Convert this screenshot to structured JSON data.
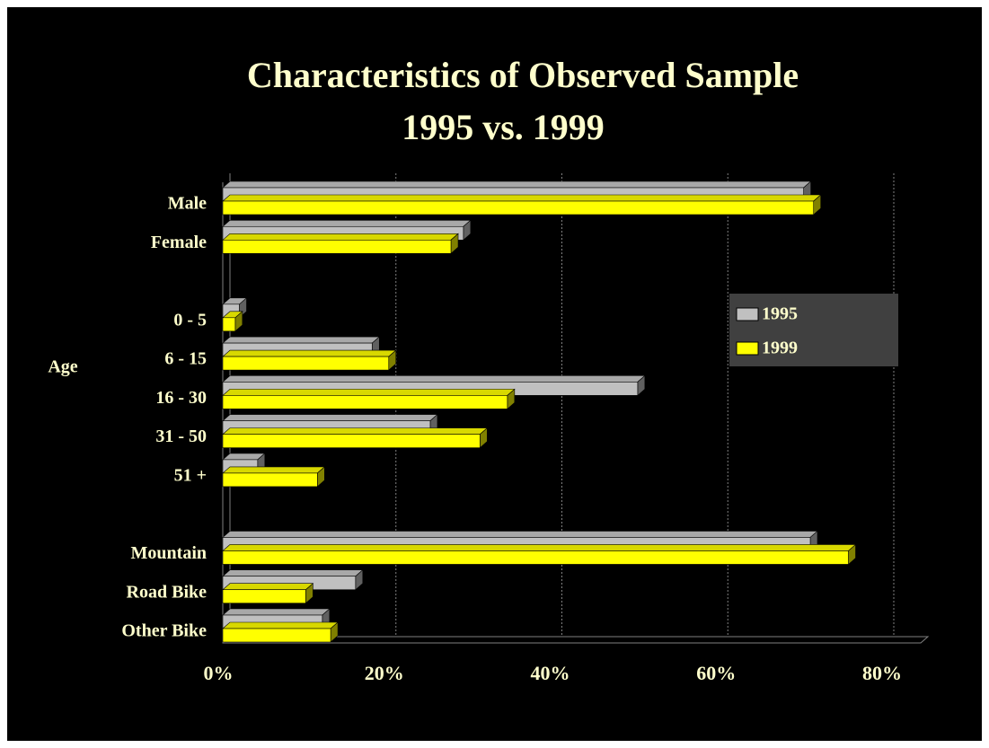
{
  "chart_data": {
    "type": "bar3d_horizontal",
    "title": "Characteristics of Observed Sample",
    "subtitle": "1995 vs. 1999",
    "annotations": [
      "Age"
    ],
    "categories": [
      "Male",
      "Female",
      null,
      "0 - 5",
      "6 - 15",
      "16 - 30",
      "31 - 50",
      "51 +",
      null,
      "Mountain",
      "Road Bike",
      "Other Bike"
    ],
    "series": [
      {
        "name": "1995",
        "color": "#c0c0c0",
        "values": [
          70,
          29,
          null,
          2,
          18,
          50,
          25,
          4.2,
          null,
          70.8,
          16,
          12
        ]
      },
      {
        "name": "1999",
        "color": "#ffff00",
        "values": [
          71.2,
          27.5,
          null,
          1.5,
          20,
          34.3,
          31,
          11.4,
          null,
          75.4,
          10,
          13
        ]
      }
    ],
    "xlim": [
      0,
      80
    ],
    "xticks": [
      {
        "value": 0,
        "label": "0%"
      },
      {
        "value": 20,
        "label": "20%"
      },
      {
        "value": 40,
        "label": "40%"
      },
      {
        "value": 60,
        "label": "60%"
      },
      {
        "value": 80,
        "label": "80%"
      }
    ],
    "grid": true,
    "legend": "right"
  }
}
